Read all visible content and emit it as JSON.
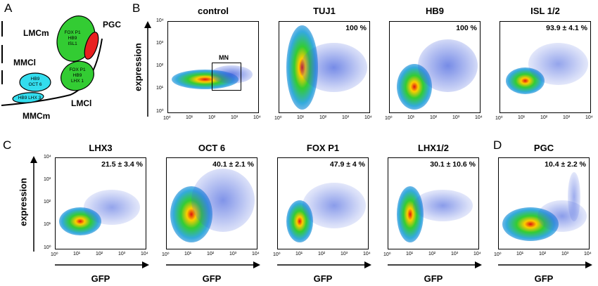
{
  "panels": {
    "a": "A",
    "b": "B",
    "c": "C",
    "d": "D"
  },
  "diagram": {
    "lmcm": "LMCm",
    "pgc": "PGC",
    "mmcl": "MMCl",
    "lmcl": "LMCl",
    "mmcm": "MMCm",
    "cell_lmcm": "FOX P1\nHB9\nISL1",
    "cell_lmcl": "FOX P1\nHB9\nLHX 1",
    "cell_mmcl": "HB9\nOCT 6",
    "cell_mmcm": "HB9 LHX 3"
  },
  "axes": {
    "ylabel": "expression",
    "xlabel": "GFP",
    "ticks": [
      "10⁰",
      "10¹",
      "10²",
      "10³",
      "10⁴"
    ]
  },
  "plots_row1": [
    {
      "title": "control",
      "pct": "",
      "gate": "MN"
    },
    {
      "title": "TUJ1",
      "pct": "100 %"
    },
    {
      "title": "HB9",
      "pct": "100 %"
    },
    {
      "title": "ISL 1/2",
      "pct": "93.9 ± 4.1 %"
    }
  ],
  "plots_row2": [
    {
      "title": "LHX3",
      "pct": "21.5 ± 3.4 %"
    },
    {
      "title": "OCT 6",
      "pct": "40.1 ± 2.1 %"
    },
    {
      "title": "FOX P1",
      "pct": "47.9 ± 4 %"
    },
    {
      "title": "LHX1/2",
      "pct": "30.1 ± 10.6 %"
    },
    {
      "title": "PGC",
      "pct": "10.4 ± 2.2 %"
    }
  ],
  "colors": {
    "green": "#33cc33",
    "red": "#e82020",
    "cyan": "#33ddee",
    "scatter_blue": "#3355dd",
    "hot_red": "#dd1111"
  }
}
